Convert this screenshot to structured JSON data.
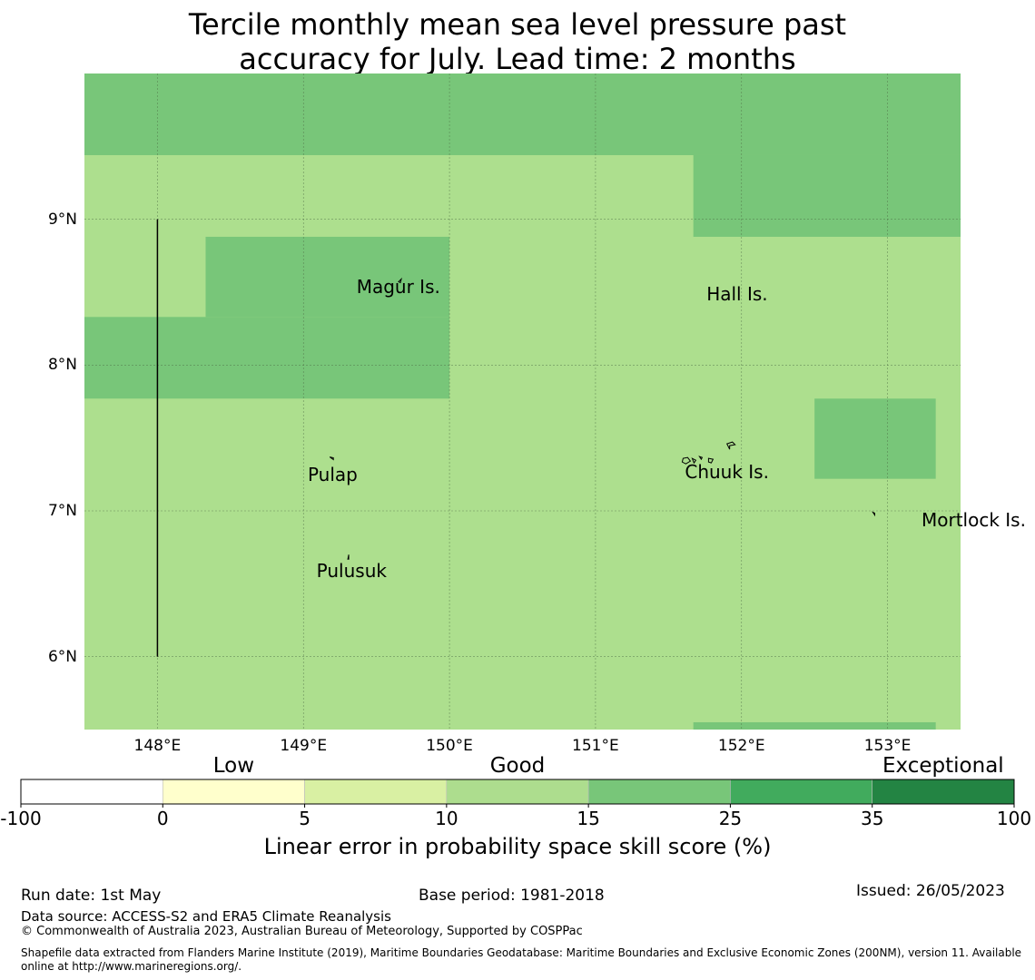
{
  "title": {
    "line1": "Tercile monthly mean sea level pressure past",
    "line2": "accuracy for July. Lead time: 2 months"
  },
  "map": {
    "lon_range": [
      147.5,
      153.5
    ],
    "lat_range": [
      5.5,
      10.0
    ],
    "lon_ticks": [
      {
        "value": 148,
        "label": "148°E"
      },
      {
        "value": 149,
        "label": "149°E"
      },
      {
        "value": 150,
        "label": "150°E"
      },
      {
        "value": 151,
        "label": "151°E"
      },
      {
        "value": 152,
        "label": "152°E"
      },
      {
        "value": 153,
        "label": "153°E"
      }
    ],
    "lat_ticks": [
      {
        "value": 9,
        "label": "9°N"
      },
      {
        "value": 8,
        "label": "8°N"
      },
      {
        "value": 7,
        "label": "7°N"
      },
      {
        "value": 6,
        "label": "6°N"
      }
    ],
    "background_color": "#addf8e",
    "skill_cells": [
      {
        "lon": [
          147.5,
          153.5
        ],
        "lat": [
          9.44,
          10.0
        ],
        "color": "#78c679",
        "category": "15–25"
      },
      {
        "lon": [
          151.67,
          153.5
        ],
        "lat": [
          8.88,
          9.44
        ],
        "color": "#78c679",
        "category": "15–25"
      },
      {
        "lon": [
          148.33,
          150.0
        ],
        "lat": [
          8.33,
          8.88
        ],
        "color": "#78c679",
        "category": "15–25"
      },
      {
        "lon": [
          147.5,
          150.0
        ],
        "lat": [
          7.77,
          8.33
        ],
        "color": "#78c679",
        "category": "15–25"
      },
      {
        "lon": [
          152.5,
          153.33
        ],
        "lat": [
          7.22,
          7.77
        ],
        "color": "#78c679",
        "category": "15–25"
      },
      {
        "lon": [
          151.67,
          153.33
        ],
        "lat": [
          5.5,
          5.55
        ],
        "color": "#78c679",
        "category": "15–25"
      }
    ],
    "boundary_line": {
      "lon": 148,
      "lat": [
        6.0,
        9.0
      ]
    },
    "places": [
      {
        "name": "Magur Is.",
        "lon": 149.65,
        "lat": 8.54
      },
      {
        "name": "Hall Is.",
        "lon": 151.97,
        "lat": 8.49
      },
      {
        "name": "Pulap",
        "lon": 149.2,
        "lat": 7.25
      },
      {
        "name": "Chuuk Is.",
        "lon": 151.9,
        "lat": 7.27
      },
      {
        "name": "Mortlock Is.",
        "lon": 153.59,
        "lat": 6.94
      },
      {
        "name": "Pulusuk",
        "lon": 149.33,
        "lat": 6.59
      }
    ]
  },
  "colorbar": {
    "categories": [
      {
        "label": "Low",
        "position": "0–5"
      },
      {
        "label": "Good",
        "position": "10–15"
      },
      {
        "label": "Exceptional",
        "position": "35–100"
      }
    ],
    "bins": [
      {
        "from": -100,
        "to": 0,
        "color": "#ffffff"
      },
      {
        "from": 0,
        "to": 5,
        "color": "#ffffcc"
      },
      {
        "from": 5,
        "to": 10,
        "color": "#d9f0a3"
      },
      {
        "from": 10,
        "to": 15,
        "color": "#addd8e"
      },
      {
        "from": 15,
        "to": 25,
        "color": "#78c679"
      },
      {
        "from": 25,
        "to": 35,
        "color": "#41ab5d"
      },
      {
        "from": 35,
        "to": 100,
        "color": "#238443"
      }
    ],
    "tick_labels": [
      "-100",
      "0",
      "5",
      "10",
      "15",
      "25",
      "35",
      "100"
    ],
    "label": "Linear error in probability space skill score (%)"
  },
  "footer": {
    "run_date": "Run date: 1st May",
    "base_period": "Base period: 1981-2018",
    "issued": "Issued: 26/05/2023",
    "data_source": "Data source: ACCESS-S2 and ERA5 Climate Reanalysis",
    "copyright": "© Commonwealth of Australia 2023, Australian Bureau of Meteorology, Supported by COSPPac",
    "shapefile_line1": "Shapefile data extracted from Flanders Marine Institute (2019), Maritime Boundaries Geodatabase: Maritime Boundaries and Exclusive Economic Zones (200NM), version 11. Available",
    "shapefile_line2": "online at http://www.marineregions.org/."
  }
}
